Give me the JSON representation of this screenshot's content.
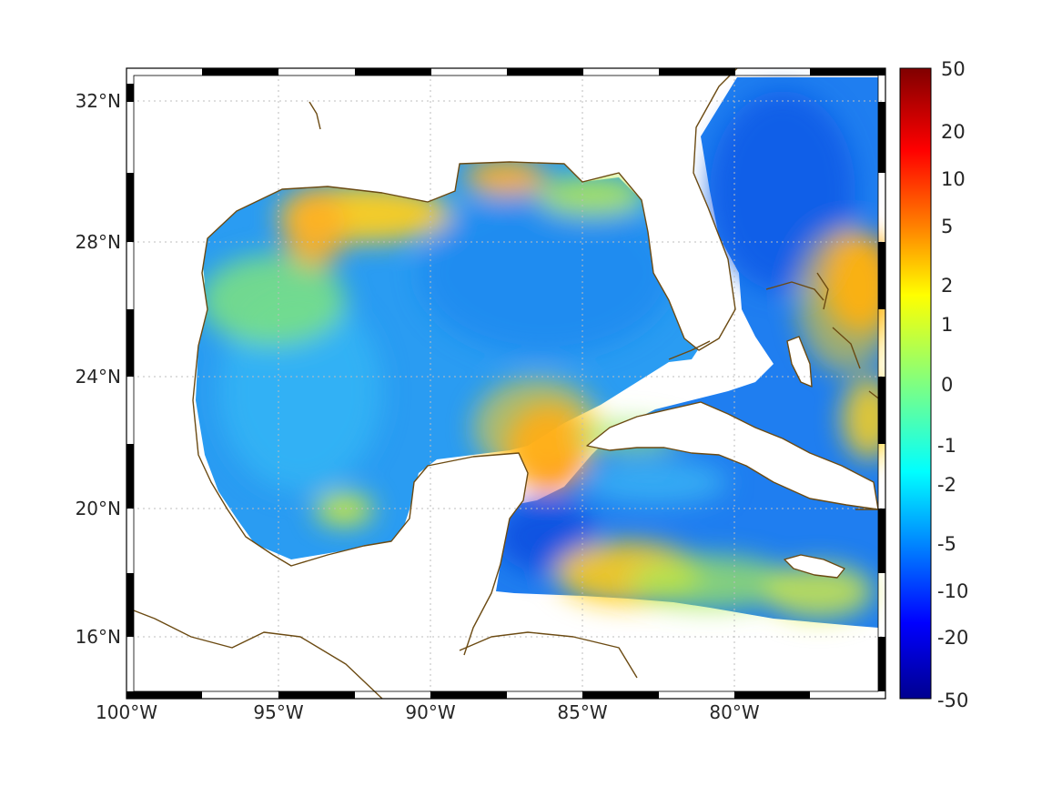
{
  "map": {
    "region": "Gulf of Mexico and Caribbean",
    "colors": {
      "coastline": "#6b4a12",
      "land": "#ffffff",
      "grid": "#bdbdbd",
      "frame_dark": "#000000",
      "frame_light": "#ffffff"
    },
    "lon_labels": [
      "100°W",
      "95°W",
      "90°W",
      "85°W",
      "80°W"
    ],
    "lat_labels": [
      "32°N",
      "28°N",
      "24°N",
      "20°N",
      "16°N"
    ]
  },
  "colorbar": {
    "colormap": "jet",
    "scale": "nonlinear",
    "colors": [
      "#00008f",
      "#0000ff",
      "#0080ff",
      "#00ffff",
      "#80ff80",
      "#ffff00",
      "#ff8000",
      "#ff0000",
      "#800000"
    ],
    "tick_labels": [
      "50",
      "20",
      "10",
      "5",
      "2",
      "1",
      "0",
      "-1",
      "-2",
      "-5",
      "-10",
      "-20",
      "-50"
    ]
  },
  "chart_data": {
    "type": "heatmap",
    "title": "",
    "xlabel": "",
    "ylabel": "",
    "xlim": [
      -100,
      -75
    ],
    "ylim": [
      14.3,
      33
    ],
    "x_ticks": [
      -100,
      -95,
      -90,
      -85,
      -80
    ],
    "y_ticks": [
      32,
      28,
      24,
      20,
      16
    ],
    "value_range": [
      -50,
      50
    ],
    "colorbar_ticks": [
      50,
      20,
      10,
      5,
      2,
      1,
      0,
      -1,
      -2,
      -5,
      -10,
      -20,
      -50
    ],
    "grid": true,
    "features": [
      {
        "region": "northern Gulf shelf (Louisiana)",
        "value": 2
      },
      {
        "region": "south of Cuba / Yucatan Channel",
        "value": 5
      },
      {
        "region": "east of the Bahamas",
        "value": 5
      },
      {
        "region": "Straits of Florida / Atlantic east of Florida",
        "value": -5
      },
      {
        "region": "south of Yucatan (western Caribbean)",
        "value": -5
      },
      {
        "region": "central Gulf of Mexico",
        "value": -2
      },
      {
        "region": "Caribbean south of Jamaica",
        "value": 1
      }
    ]
  }
}
